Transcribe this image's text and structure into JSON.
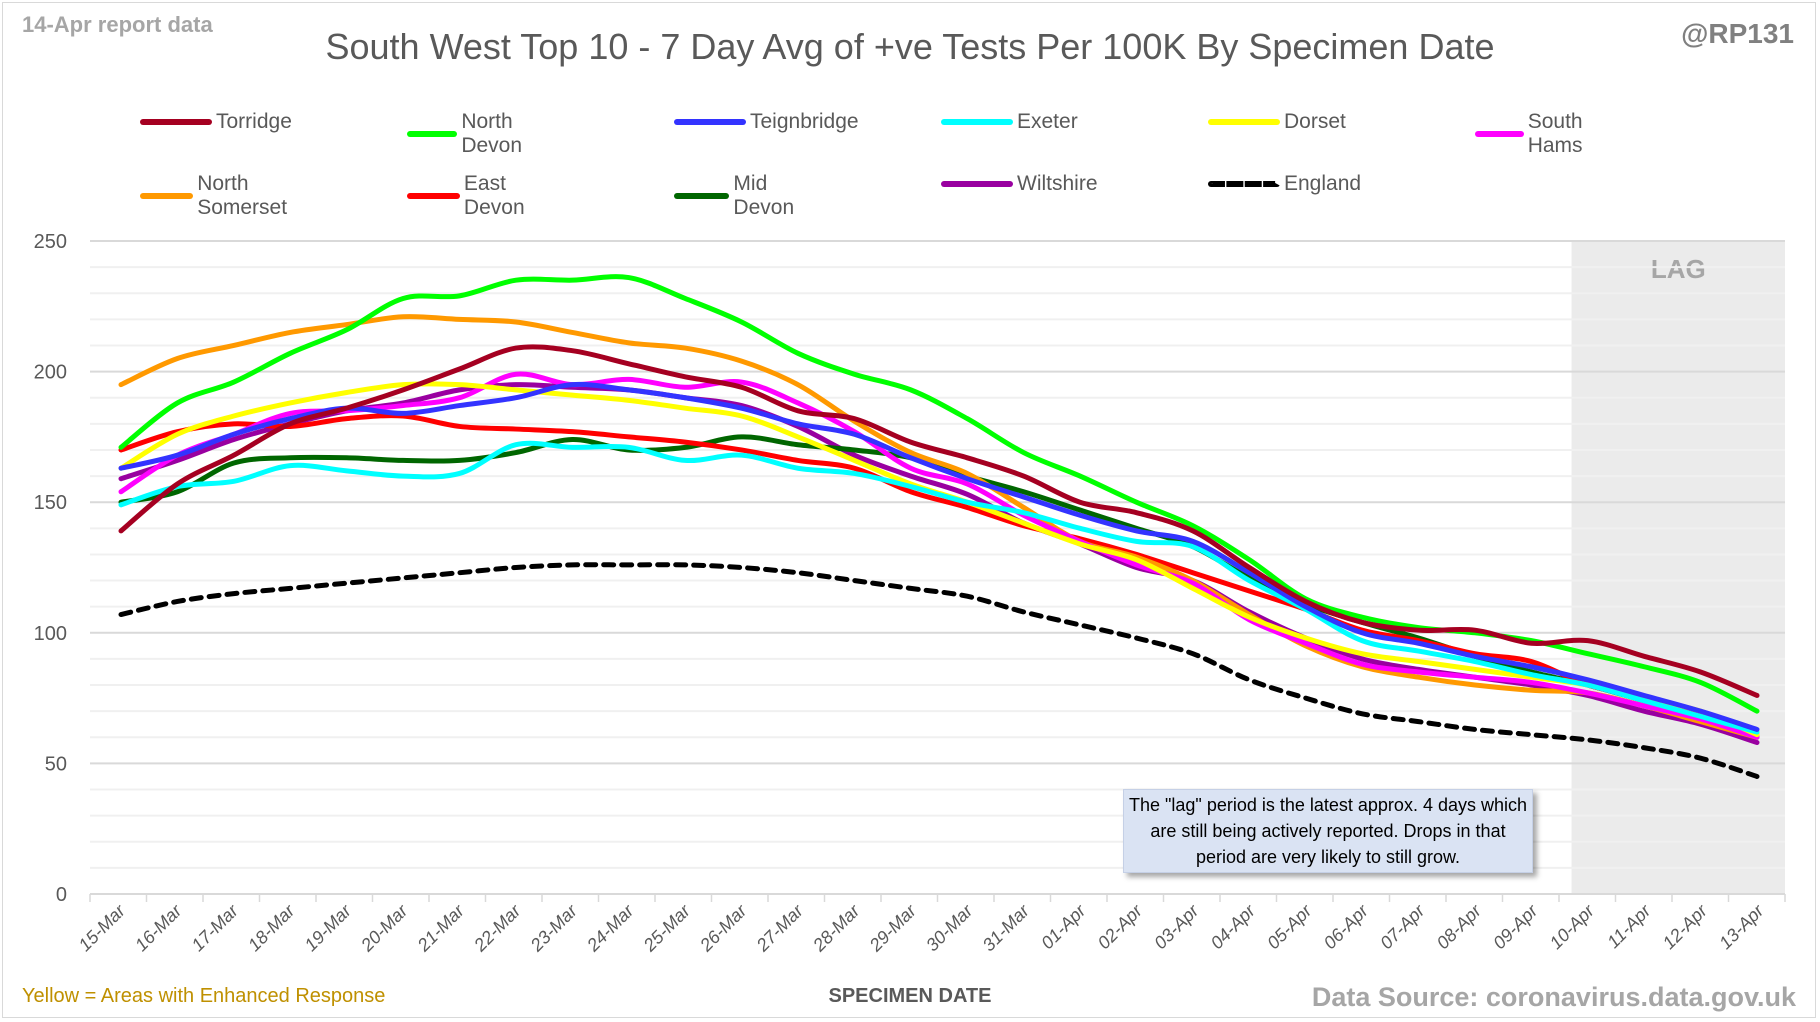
{
  "header": {
    "report_label": "14-Apr report data",
    "handle": "@RP131"
  },
  "footer": {
    "note": "Yellow = Areas with Enhanced Response",
    "source": "Data Source: coronavirus.data.gov.uk"
  },
  "lag_note": "The \"lag\" period is the latest approx. 4 days which are still being actively reported.  Drops in that period are very likely to still grow.",
  "chart_data": {
    "type": "line",
    "title": "South West Top 10 - 7 Day Avg of +ve Tests Per 100K By Specimen Date",
    "xlabel": "SPECIMEN DATE",
    "ylabel": "",
    "ylim": [
      0,
      250
    ],
    "yticks": [
      0,
      50,
      100,
      150,
      200,
      250
    ],
    "grid": true,
    "legend_position": "top",
    "lag_region": {
      "label": "LAG",
      "from": "10-Apr",
      "to": "13-Apr"
    },
    "x": [
      "15-Mar",
      "16-Mar",
      "17-Mar",
      "18-Mar",
      "19-Mar",
      "20-Mar",
      "21-Mar",
      "22-Mar",
      "23-Mar",
      "24-Mar",
      "25-Mar",
      "26-Mar",
      "27-Mar",
      "28-Mar",
      "29-Mar",
      "30-Mar",
      "31-Mar",
      "01-Apr",
      "02-Apr",
      "03-Apr",
      "04-Apr",
      "05-Apr",
      "06-Apr",
      "07-Apr",
      "08-Apr",
      "09-Apr",
      "10-Apr",
      "11-Apr",
      "12-Apr",
      "13-Apr"
    ],
    "series": [
      {
        "name": "Torridge",
        "color": "#a50021",
        "dashed": false,
        "values": [
          139,
          157,
          168,
          180,
          186,
          193,
          201,
          209,
          208,
          203,
          198,
          194,
          185,
          182,
          173,
          167,
          160,
          150,
          146,
          139,
          125,
          112,
          104,
          101,
          101,
          96,
          97,
          91,
          85,
          76
        ]
      },
      {
        "name": "North Devon",
        "color": "#00ff00",
        "dashed": false,
        "values": [
          171,
          188,
          196,
          207,
          216,
          228,
          229,
          235,
          235,
          236,
          228,
          219,
          207,
          199,
          193,
          182,
          169,
          160,
          150,
          141,
          128,
          113,
          106,
          102,
          100,
          97,
          92,
          87,
          81,
          70
        ]
      },
      {
        "name": "Teignbridge",
        "color": "#3333ff",
        "dashed": false,
        "values": [
          163,
          168,
          176,
          182,
          186,
          184,
          187,
          190,
          195,
          193,
          190,
          186,
          180,
          176,
          167,
          159,
          152,
          145,
          139,
          135,
          123,
          110,
          100,
          96,
          91,
          87,
          82,
          76,
          70,
          63
        ]
      },
      {
        "name": "Exeter",
        "color": "#00ffff",
        "dashed": false,
        "values": [
          149,
          156,
          158,
          164,
          162,
          160,
          161,
          172,
          171,
          171,
          166,
          168,
          163,
          161,
          156,
          150,
          146,
          140,
          135,
          133,
          120,
          109,
          97,
          93,
          89,
          84,
          80,
          74,
          68,
          62
        ]
      },
      {
        "name": "Dorset",
        "color": "#ffff00",
        "dashed": false,
        "values": [
          163,
          176,
          183,
          188,
          192,
          195,
          195,
          193,
          191,
          189,
          186,
          183,
          175,
          166,
          157,
          150,
          142,
          134,
          128,
          117,
          106,
          98,
          92,
          89,
          86,
          83,
          80,
          75,
          70,
          61
        ]
      },
      {
        "name": "South Hams",
        "color": "#ff00ff",
        "dashed": false,
        "values": [
          154,
          168,
          176,
          184,
          185,
          187,
          190,
          199,
          195,
          197,
          194,
          196,
          188,
          177,
          163,
          157,
          145,
          135,
          126,
          119,
          105,
          96,
          88,
          85,
          83,
          81,
          77,
          72,
          67,
          60
        ]
      },
      {
        "name": "North Somerset",
        "color": "#ff9900",
        "dashed": false,
        "values": [
          195,
          205,
          210,
          215,
          218,
          221,
          220,
          219,
          215,
          211,
          209,
          204,
          195,
          181,
          169,
          161,
          148,
          135,
          129,
          120,
          107,
          95,
          87,
          83,
          80,
          78,
          77,
          72,
          66,
          60
        ]
      },
      {
        "name": "East Devon",
        "color": "#ff0000",
        "dashed": false,
        "values": [
          170,
          177,
          180,
          179,
          182,
          183,
          179,
          178,
          177,
          175,
          173,
          170,
          166,
          163,
          154,
          148,
          141,
          136,
          130,
          123,
          116,
          109,
          101,
          97,
          92,
          89,
          80,
          75,
          68,
          61
        ]
      },
      {
        "name": "Mid Devon",
        "color": "#006600",
        "dashed": false,
        "values": [
          150,
          154,
          165,
          167,
          167,
          166,
          166,
          169,
          174,
          170,
          171,
          175,
          172,
          170,
          167,
          160,
          154,
          147,
          140,
          133,
          121,
          111,
          104,
          98,
          91,
          85,
          80,
          74,
          68,
          60
        ]
      },
      {
        "name": "Wiltshire",
        "color": "#9900a0",
        "dashed": false,
        "values": [
          159,
          166,
          174,
          180,
          185,
          188,
          193,
          195,
          194,
          193,
          190,
          187,
          179,
          168,
          160,
          153,
          142,
          134,
          125,
          120,
          108,
          98,
          90,
          86,
          83,
          80,
          76,
          70,
          65,
          58
        ]
      },
      {
        "name": "England",
        "color": "#000000",
        "dashed": true,
        "values": [
          107,
          112,
          115,
          117,
          119,
          121,
          123,
          125,
          126,
          126,
          126,
          125,
          123,
          120,
          117,
          114,
          108,
          103,
          98,
          92,
          82,
          75,
          69,
          66,
          63,
          61,
          59,
          56,
          52,
          45
        ]
      }
    ]
  }
}
